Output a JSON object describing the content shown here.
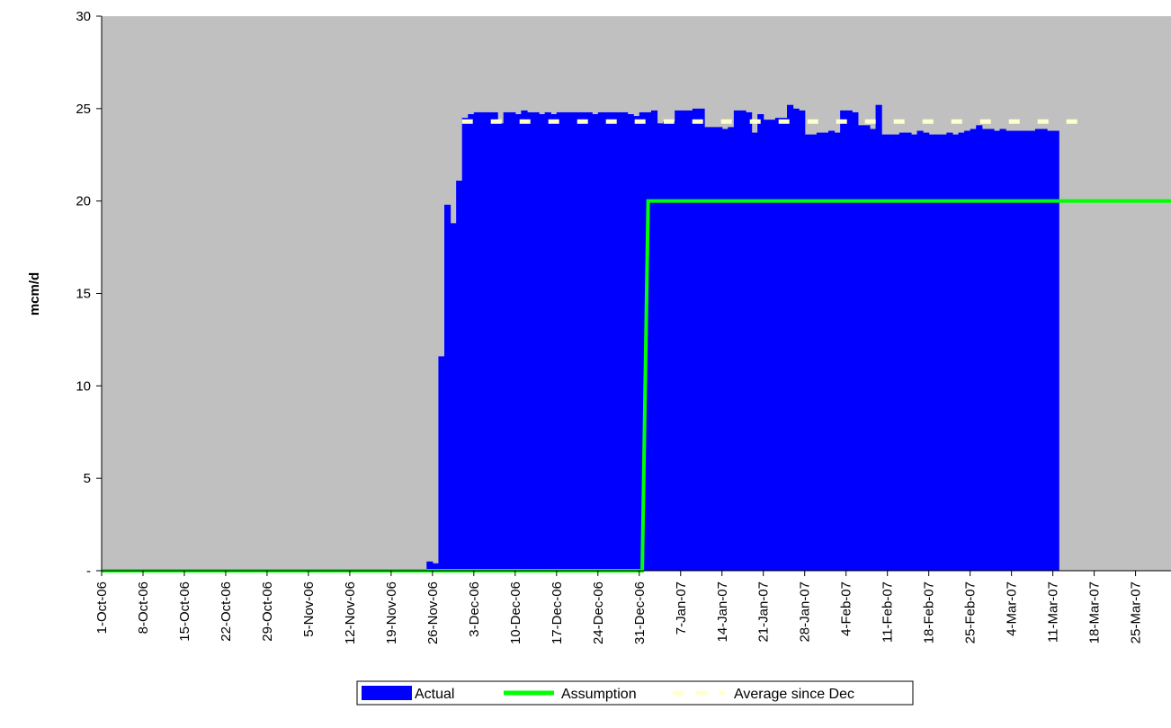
{
  "chart_data": {
    "type": "bar",
    "ylabel": "mcm/d",
    "ylim": [
      0,
      30
    ],
    "y_ticks": [
      {
        "value": 0,
        "label": "-"
      },
      {
        "value": 5,
        "label": "5"
      },
      {
        "value": 10,
        "label": "10"
      },
      {
        "value": 15,
        "label": "15"
      },
      {
        "value": 20,
        "label": "20"
      },
      {
        "value": 25,
        "label": "25"
      },
      {
        "value": 30,
        "label": "30"
      }
    ],
    "x_range": [
      "2006-10-01",
      "2007-03-31"
    ],
    "x_ticks": [
      {
        "date": "2006-10-01",
        "label": "1-Oct-06"
      },
      {
        "date": "2006-10-08",
        "label": "8-Oct-06"
      },
      {
        "date": "2006-10-15",
        "label": "15-Oct-06"
      },
      {
        "date": "2006-10-22",
        "label": "22-Oct-06"
      },
      {
        "date": "2006-10-29",
        "label": "29-Oct-06"
      },
      {
        "date": "2006-11-05",
        "label": "5-Nov-06"
      },
      {
        "date": "2006-11-12",
        "label": "12-Nov-06"
      },
      {
        "date": "2006-11-19",
        "label": "19-Nov-06"
      },
      {
        "date": "2006-11-26",
        "label": "26-Nov-06"
      },
      {
        "date": "2006-12-03",
        "label": "3-Dec-06"
      },
      {
        "date": "2006-12-10",
        "label": "10-Dec-06"
      },
      {
        "date": "2006-12-17",
        "label": "17-Dec-06"
      },
      {
        "date": "2006-12-24",
        "label": "24-Dec-06"
      },
      {
        "date": "2006-12-31",
        "label": "31-Dec-06"
      },
      {
        "date": "2007-01-07",
        "label": "7-Jan-07"
      },
      {
        "date": "2007-01-14",
        "label": "14-Jan-07"
      },
      {
        "date": "2007-01-21",
        "label": "21-Jan-07"
      },
      {
        "date": "2007-01-28",
        "label": "28-Jan-07"
      },
      {
        "date": "2007-02-04",
        "label": "4-Feb-07"
      },
      {
        "date": "2007-02-11",
        "label": "11-Feb-07"
      },
      {
        "date": "2007-02-18",
        "label": "18-Feb-07"
      },
      {
        "date": "2007-02-25",
        "label": "25-Feb-07"
      },
      {
        "date": "2007-03-04",
        "label": "4-Mar-07"
      },
      {
        "date": "2007-03-11",
        "label": "11-Mar-07"
      },
      {
        "date": "2007-03-18",
        "label": "18-Mar-07"
      },
      {
        "date": "2007-03-25",
        "label": "25-Mar-07"
      }
    ],
    "grid": false,
    "legend_position": "bottom",
    "plot_background": "#c0c0c0",
    "series": [
      {
        "name": "Actual",
        "type": "bar",
        "color": "#0000ff",
        "start_date": "2006-11-25",
        "values": [
          0.5,
          0.4,
          11.6,
          19.8,
          18.8,
          21.1,
          24.5,
          24.7,
          24.8,
          24.8,
          24.8,
          24.8,
          24.2,
          24.8,
          24.8,
          24.7,
          24.9,
          24.8,
          24.8,
          24.7,
          24.8,
          24.7,
          24.8,
          24.8,
          24.8,
          24.8,
          24.8,
          24.8,
          24.7,
          24.8,
          24.8,
          24.8,
          24.8,
          24.8,
          24.7,
          24.6,
          24.8,
          24.8,
          24.9,
          24.2,
          24.3,
          24.3,
          24.9,
          24.9,
          24.9,
          25.0,
          25.0,
          24.0,
          24.0,
          24.0,
          23.9,
          24.0,
          24.9,
          24.9,
          24.8,
          23.7,
          24.7,
          24.4,
          24.4,
          24.5,
          24.5,
          25.2,
          25.0,
          24.9,
          23.6,
          23.6,
          23.7,
          23.7,
          23.8,
          23.7,
          24.9,
          24.9,
          24.8,
          24.1,
          24.1,
          23.9,
          25.2,
          23.6,
          23.6,
          23.6,
          23.7,
          23.7,
          23.6,
          23.8,
          23.7,
          23.6,
          23.6,
          23.6,
          23.7,
          23.6,
          23.7,
          23.8,
          23.9,
          24.1,
          23.9,
          23.9,
          23.8,
          23.9,
          23.8,
          23.8,
          23.8,
          23.8,
          23.8,
          23.9,
          23.9,
          23.8,
          23.8
        ]
      },
      {
        "name": "Assumption",
        "type": "step-line",
        "color": "#00ff00",
        "points": [
          {
            "date": "2006-10-01",
            "value": 0
          },
          {
            "date": "2007-01-01",
            "value": 0
          },
          {
            "date": "2007-01-01",
            "value": 20
          },
          {
            "date": "2007-03-31",
            "value": 20
          }
        ]
      },
      {
        "name": "Average since Dec",
        "type": "dashed-line",
        "color": "#ffffcc",
        "start_date": "2006-12-01",
        "end_date": "2007-03-18",
        "value": 24.3
      }
    ]
  }
}
